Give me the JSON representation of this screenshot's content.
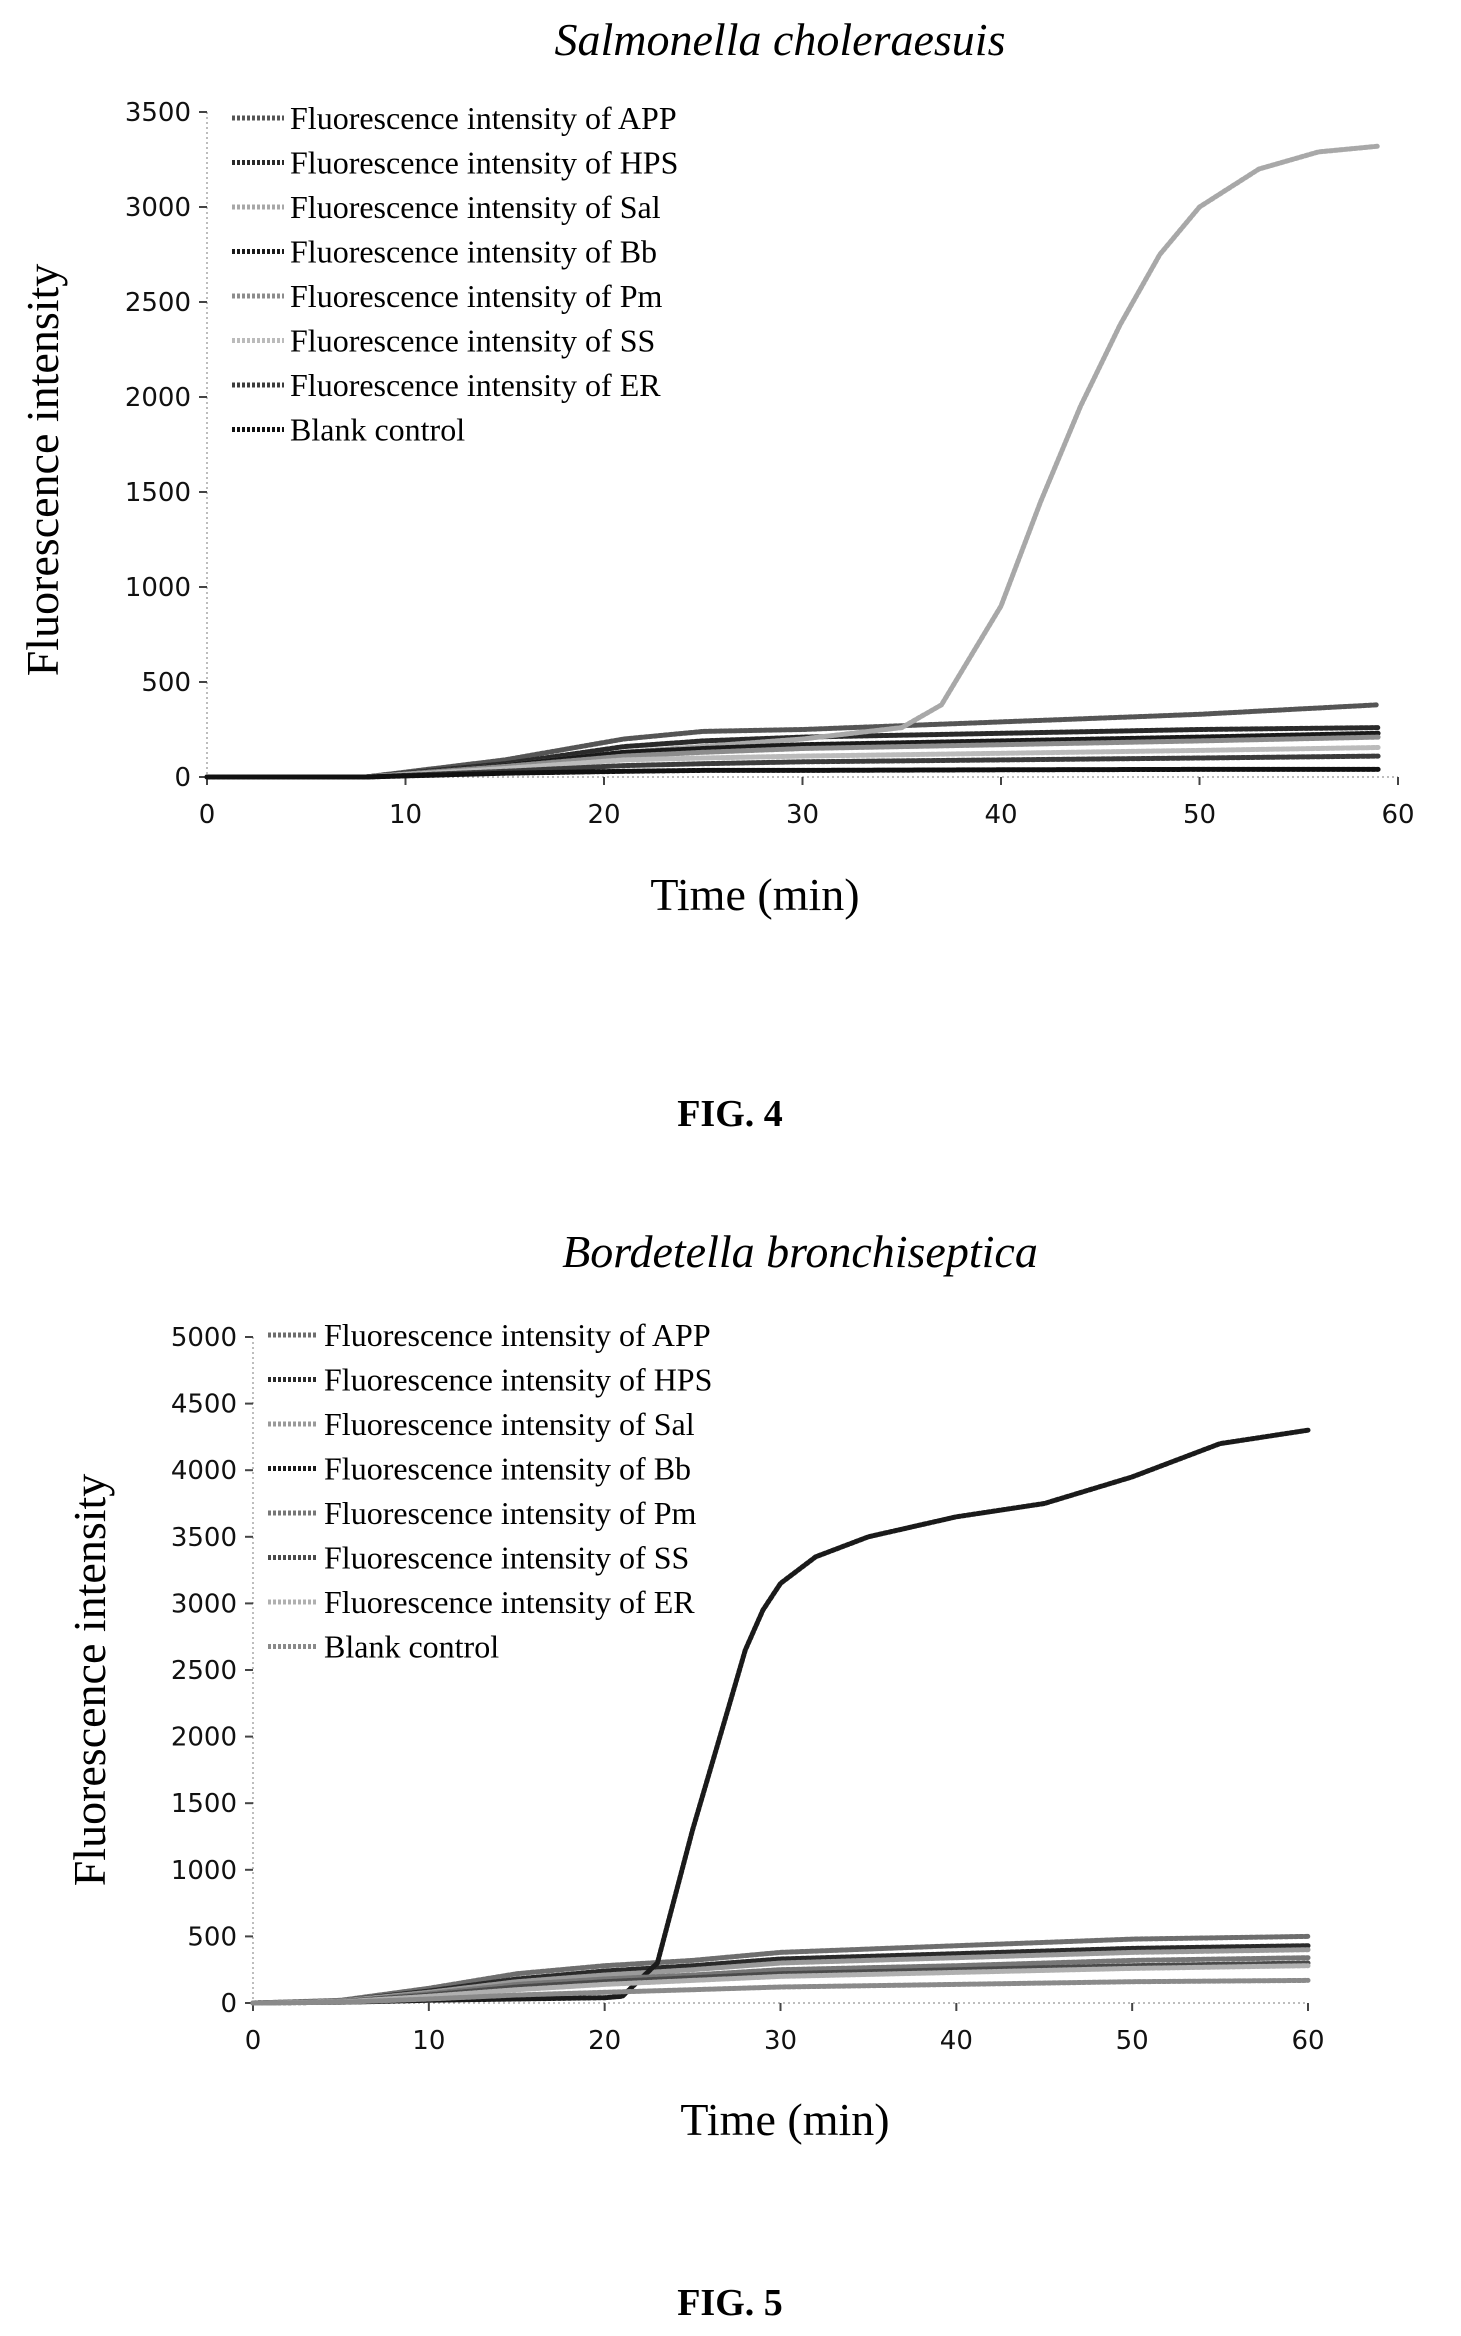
{
  "chart_data": [
    {
      "type": "line",
      "title": "Salmonella choleraesuis",
      "xlabel": "Time (min)",
      "ylabel": "Fluorescence intensity",
      "xlim": [
        0,
        60
      ],
      "ylim": [
        0,
        3500
      ],
      "xticks": [
        0,
        10,
        20,
        30,
        40,
        50,
        60
      ],
      "yticks": [
        0,
        500,
        1000,
        1500,
        2000,
        2500,
        3000,
        3500
      ],
      "legend_placement": "top-left",
      "grid": false,
      "figure_label": "FIG. 4",
      "series": [
        {
          "name": "Fluorescence intensity of APP",
          "color": "#555555",
          "x": [
            0,
            8,
            15,
            21,
            25,
            30,
            40,
            50,
            59
          ],
          "y": [
            0,
            0,
            90,
            200,
            240,
            250,
            290,
            330,
            380
          ]
        },
        {
          "name": "Fluorescence intensity of HPS",
          "color": "#2a2a2a",
          "x": [
            0,
            8,
            15,
            21,
            25,
            30,
            40,
            50,
            59
          ],
          "y": [
            0,
            0,
            70,
            160,
            190,
            210,
            230,
            250,
            260
          ]
        },
        {
          "name": "Fluorescence intensity of Sal",
          "color": "#a8a8a8",
          "x": [
            0,
            8,
            15,
            21,
            30,
            35,
            37,
            40,
            42,
            44,
            46,
            48,
            50,
            53,
            56,
            59
          ],
          "y": [
            0,
            0,
            60,
            130,
            200,
            260,
            380,
            900,
            1450,
            1950,
            2380,
            2750,
            3000,
            3200,
            3290,
            3320
          ]
        },
        {
          "name": "Fluorescence intensity of Bb",
          "color": "#1a1a1a",
          "x": [
            0,
            8,
            15,
            21,
            25,
            30,
            40,
            50,
            59
          ],
          "y": [
            0,
            0,
            60,
            130,
            150,
            170,
            190,
            210,
            230
          ]
        },
        {
          "name": "Fluorescence intensity of Pm",
          "color": "#8c8c8c",
          "x": [
            0,
            8,
            15,
            21,
            25,
            30,
            40,
            50,
            59
          ],
          "y": [
            0,
            0,
            55,
            110,
            130,
            150,
            170,
            190,
            210
          ]
        },
        {
          "name": "Fluorescence intensity of SS",
          "color": "#bbbbbb",
          "x": [
            0,
            8,
            15,
            21,
            25,
            30,
            40,
            50,
            59
          ],
          "y": [
            0,
            0,
            45,
            90,
            100,
            110,
            125,
            140,
            155
          ]
        },
        {
          "name": "Fluorescence intensity of ER",
          "color": "#3c3c3c",
          "x": [
            0,
            8,
            15,
            21,
            25,
            30,
            40,
            50,
            59
          ],
          "y": [
            0,
            0,
            30,
            60,
            70,
            80,
            90,
            100,
            110
          ]
        },
        {
          "name": "Blank control",
          "color": "#111111",
          "x": [
            0,
            8,
            15,
            21,
            25,
            30,
            40,
            50,
            59
          ],
          "y": [
            0,
            0,
            20,
            30,
            35,
            35,
            38,
            40,
            40
          ]
        }
      ]
    },
    {
      "type": "line",
      "title": "Bordetella bronchiseptica",
      "xlabel": "Time (min)",
      "ylabel": "Fluorescence intensity",
      "xlim": [
        0,
        60
      ],
      "ylim": [
        0,
        5000
      ],
      "xticks": [
        0,
        10,
        20,
        30,
        40,
        50,
        60
      ],
      "yticks": [
        0,
        500,
        1000,
        1500,
        2000,
        2500,
        3000,
        3500,
        4000,
        4500,
        5000
      ],
      "legend_placement": "top-left",
      "grid": false,
      "figure_label": "FIG. 5",
      "series": [
        {
          "name": "Fluorescence intensity of APP",
          "color": "#6e6e6e",
          "x": [
            0,
            5,
            10,
            15,
            20,
            25,
            30,
            40,
            50,
            60
          ],
          "y": [
            0,
            20,
            110,
            220,
            280,
            320,
            380,
            430,
            480,
            500
          ]
        },
        {
          "name": "Fluorescence intensity of HPS",
          "color": "#2a2a2a",
          "x": [
            0,
            5,
            10,
            15,
            20,
            25,
            30,
            40,
            50,
            60
          ],
          "y": [
            0,
            15,
            90,
            180,
            240,
            280,
            330,
            370,
            410,
            430
          ]
        },
        {
          "name": "Fluorescence intensity of Sal",
          "color": "#9a9a9a",
          "x": [
            0,
            5,
            10,
            15,
            20,
            25,
            30,
            40,
            50,
            60
          ],
          "y": [
            0,
            15,
            80,
            160,
            210,
            250,
            300,
            340,
            380,
            400
          ]
        },
        {
          "name": "Fluorescence intensity of Bb",
          "color": "#1a1a1a",
          "x": [
            0,
            5,
            10,
            15,
            20,
            21,
            23,
            25,
            27,
            28,
            29,
            30,
            32,
            35,
            40,
            45,
            50,
            55,
            60
          ],
          "y": [
            0,
            5,
            20,
            30,
            40,
            50,
            300,
            1300,
            2200,
            2650,
            2950,
            3150,
            3350,
            3500,
            3650,
            3750,
            3950,
            4200,
            4300
          ]
        },
        {
          "name": "Fluorescence intensity of Pm",
          "color": "#777777",
          "x": [
            0,
            5,
            10,
            15,
            20,
            25,
            30,
            40,
            50,
            60
          ],
          "y": [
            0,
            10,
            70,
            140,
            180,
            210,
            250,
            280,
            320,
            340
          ]
        },
        {
          "name": "Fluorescence intensity of SS",
          "color": "#4a4a4a",
          "x": [
            0,
            5,
            10,
            15,
            20,
            25,
            30,
            40,
            50,
            60
          ],
          "y": [
            0,
            10,
            60,
            120,
            160,
            190,
            220,
            250,
            280,
            300
          ]
        },
        {
          "name": "Fluorescence intensity of ER",
          "color": "#b0b0b0",
          "x": [
            0,
            5,
            10,
            15,
            20,
            25,
            30,
            40,
            50,
            60
          ],
          "y": [
            0,
            8,
            50,
            100,
            140,
            170,
            200,
            230,
            260,
            280
          ]
        },
        {
          "name": "Blank control",
          "color": "#8a8a8a",
          "x": [
            0,
            5,
            10,
            15,
            20,
            25,
            30,
            40,
            50,
            60
          ],
          "y": [
            0,
            5,
            30,
            60,
            80,
            100,
            120,
            140,
            160,
            170
          ]
        }
      ]
    }
  ]
}
